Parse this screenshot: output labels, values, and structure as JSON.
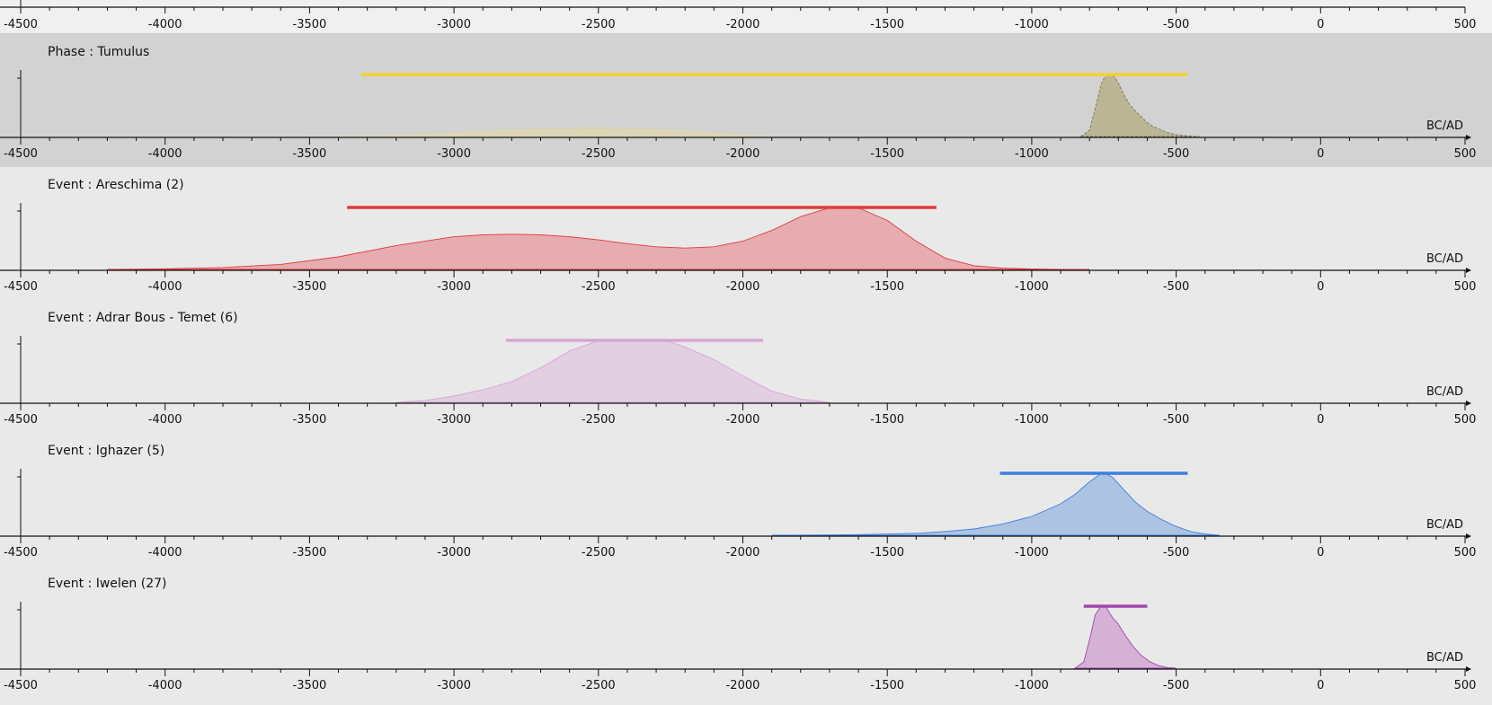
{
  "colors": {
    "background": "#e9e9e9",
    "selected_panel": "#d2d2d2",
    "top_strip": "#f0f0f0",
    "axis": "#111111"
  },
  "axis": {
    "ticks": [
      -4500,
      -4000,
      -3500,
      -3000,
      -2500,
      -2000,
      -1500,
      -1000,
      -500,
      0,
      500
    ],
    "tick_labels": [
      "-4500",
      "-4000",
      "-3500",
      "-3000",
      "-2500",
      "-2000",
      "-1500",
      "-1000",
      "-500",
      "0",
      "500"
    ],
    "minor_step": 100,
    "unit_label": "BC/AD",
    "xlim": [
      -4500,
      500
    ]
  },
  "chart_data": [
    {
      "type": "area",
      "title": "Phase : Tumulus",
      "selected": true,
      "color": "#f2d22c",
      "fill_color": "#b9b391",
      "fill_opacity": 0.95,
      "dashed": true,
      "xlabel": "BC/AD",
      "ylabel": "",
      "xlim": [
        -4500,
        500
      ],
      "hpd_interval": [
        -3320,
        -460
      ],
      "series": [
        {
          "x": [
            -830,
            -800,
            -780,
            -760,
            -745,
            -730,
            -715,
            -700,
            -680,
            -660,
            -640,
            -620,
            -600,
            -580,
            -560,
            -540,
            -520,
            -500,
            -480,
            -460,
            -440,
            -420
          ],
          "y": [
            0,
            0.1,
            0.45,
            0.83,
            0.97,
            1.0,
            0.96,
            0.85,
            0.66,
            0.5,
            0.4,
            0.31,
            0.22,
            0.16,
            0.12,
            0.08,
            0.05,
            0.03,
            0.02,
            0.01,
            0.005,
            0
          ]
        },
        {
          "x": [
            -3600,
            -3400,
            -3200,
            -3000,
            -2800,
            -2600,
            -2500,
            -2400,
            -2200,
            -2000,
            -1900
          ],
          "y": [
            0,
            0.01,
            0.03,
            0.07,
            0.11,
            0.14,
            0.145,
            0.14,
            0.1,
            0.04,
            0
          ],
          "fill_color": "#e6d79a",
          "fill_opacity": 0.5
        }
      ]
    },
    {
      "type": "area",
      "title": "Event : Areschima (2)",
      "selected": false,
      "color": "#e23b3b",
      "fill_color": "#e6a5aa",
      "fill_opacity": 0.9,
      "dashed": false,
      "xlabel": "BC/AD",
      "ylabel": "",
      "xlim": [
        -4500,
        500
      ],
      "hpd_interval": [
        -3370,
        -1330
      ],
      "series": [
        {
          "x": [
            -4200,
            -4000,
            -3800,
            -3600,
            -3400,
            -3200,
            -3000,
            -2900,
            -2800,
            -2700,
            -2600,
            -2500,
            -2400,
            -2300,
            -2200,
            -2100,
            -2000,
            -1900,
            -1800,
            -1700,
            -1650,
            -1600,
            -1500,
            -1400,
            -1300,
            -1200,
            -1100,
            -1000,
            -900,
            -800
          ],
          "y": [
            0,
            0.01,
            0.03,
            0.08,
            0.2,
            0.38,
            0.52,
            0.55,
            0.56,
            0.55,
            0.52,
            0.47,
            0.41,
            0.36,
            0.34,
            0.36,
            0.45,
            0.62,
            0.84,
            0.98,
            1.0,
            0.98,
            0.78,
            0.45,
            0.18,
            0.06,
            0.02,
            0.008,
            0.002,
            0
          ]
        }
      ]
    },
    {
      "type": "area",
      "title": "Event : Adrar Bous - Temet (6)",
      "selected": false,
      "color": "#d8a6d6",
      "fill_color": "#e1cde1",
      "fill_opacity": 0.95,
      "dashed": false,
      "xlabel": "BC/AD",
      "ylabel": "",
      "xlim": [
        -4500,
        500
      ],
      "hpd_interval": [
        -2820,
        -1930
      ],
      "series": [
        {
          "x": [
            -3200,
            -3100,
            -3000,
            -2900,
            -2800,
            -2700,
            -2600,
            -2500,
            -2450,
            -2400,
            -2300,
            -2250,
            -2200,
            -2100,
            -2000,
            -1900,
            -1800,
            -1700
          ],
          "y": [
            0,
            0.03,
            0.1,
            0.2,
            0.33,
            0.55,
            0.82,
            0.98,
            1.0,
            0.99,
            0.98,
            0.96,
            0.88,
            0.68,
            0.42,
            0.18,
            0.05,
            0
          ]
        }
      ]
    },
    {
      "type": "area",
      "title": "Event : Ighazer (5)",
      "selected": false,
      "color": "#3c7fe0",
      "fill_color": "#a9c2e2",
      "fill_opacity": 0.95,
      "dashed": false,
      "xlabel": "BC/AD",
      "ylabel": "",
      "xlim": [
        -4500,
        500
      ],
      "hpd_interval": [
        -1110,
        -460
      ],
      "series": [
        {
          "x": [
            -1900,
            -1600,
            -1400,
            -1300,
            -1200,
            -1100,
            -1000,
            -900,
            -850,
            -800,
            -760,
            -750,
            -720,
            -680,
            -640,
            -600,
            -550,
            -500,
            -450,
            -400,
            -350
          ],
          "y": [
            0,
            0.01,
            0.03,
            0.06,
            0.1,
            0.18,
            0.3,
            0.5,
            0.65,
            0.85,
            0.98,
            1.0,
            0.92,
            0.72,
            0.52,
            0.38,
            0.25,
            0.14,
            0.06,
            0.02,
            0
          ]
        }
      ]
    },
    {
      "type": "area",
      "title": "Event : Iwelen (27)",
      "selected": false,
      "color": "#a445ac",
      "fill_color": "#d4aed5",
      "fill_opacity": 0.95,
      "dashed": false,
      "xlabel": "BC/AD",
      "ylabel": "",
      "xlim": [
        -4500,
        500
      ],
      "hpd_interval": [
        -820,
        -600
      ],
      "series": [
        {
          "x": [
            -850,
            -820,
            -800,
            -780,
            -760,
            -750,
            -740,
            -720,
            -700,
            -680,
            -650,
            -620,
            -590,
            -560,
            -530,
            -500
          ],
          "y": [
            0,
            0.1,
            0.45,
            0.85,
            0.99,
            1.0,
            0.95,
            0.8,
            0.7,
            0.55,
            0.35,
            0.2,
            0.1,
            0.04,
            0.01,
            0
          ]
        }
      ]
    }
  ]
}
